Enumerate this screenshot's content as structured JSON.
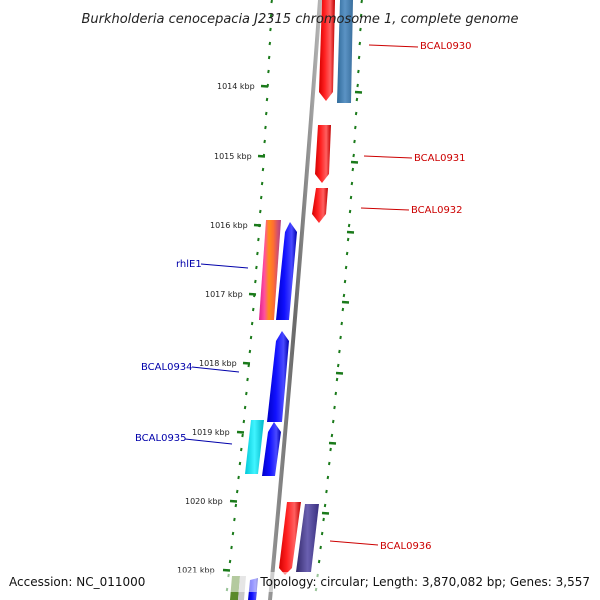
{
  "title": "Burkholderia cenocepacia J2315 chromosome 1, complete genome",
  "footer": {
    "accession": "Accession: NC_011000",
    "summary": "Topology: circular; Length: 3,870,082 bp; Genes: 3,557"
  },
  "ticks": [
    "1014 kbp",
    "1015 kbp",
    "1016 kbp",
    "1017 kbp",
    "1018 kbp",
    "1019 kbp",
    "1020 kbp",
    "1021 kbp"
  ],
  "labels": {
    "BCAL0930": "BCAL0930",
    "BCAL0931": "BCAL0931",
    "BCAL0932": "BCAL0932",
    "rhlE1": "rhlE1",
    "BCAL0934": "BCAL0934",
    "BCAL0935": "BCAL0935",
    "BCAL0936": "BCAL0936"
  },
  "colors": {
    "forward_label": "#cc0000",
    "reverse_label": "#0000aa",
    "red_gene": "#ff0000",
    "blue_gene": "#0000ff",
    "slate_gene": "#4682b4",
    "navy_gene": "#483d8b",
    "cyan_gene": "#00e5ee",
    "tick": "#1a7a1a",
    "backbone": "#7a7a7a"
  }
}
